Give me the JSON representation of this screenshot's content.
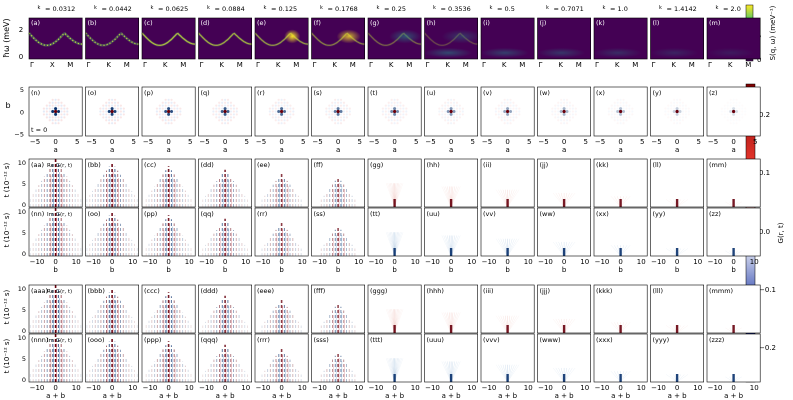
{
  "chart_data": {
    "type": "heatmap",
    "panel_grid_columns": 13,
    "temperature_labels": [
      "= 0.0312",
      "= 0.0442",
      "= 0.0625",
      "= 0.0884",
      "= 0.125",
      "= 0.1768",
      "= 0.25",
      "= 0.3536",
      "= 0.5",
      "= 0.7071",
      "= 1.0",
      "= 1.4142",
      "= 2.0"
    ],
    "temperature_values": [
      0.0312,
      0.0442,
      0.0625,
      0.0884,
      0.125,
      0.1768,
      0.25,
      0.3536,
      0.5,
      0.7071,
      1.0,
      1.4142,
      2.0
    ],
    "temperature_symbol": "k_B T / J",
    "rows": [
      {
        "id": "spectrum",
        "ylabel": "ħω (meV)",
        "ylim": [
          0,
          3
        ],
        "yticks": [
          "0",
          "2"
        ],
        "xticks_first": [
          "Γ",
          "X",
          "M"
        ],
        "xticks": [
          "Γ",
          "K",
          "M"
        ],
        "tags": [
          "(a)",
          "(b)",
          "(c)",
          "(d)",
          "(e)",
          "(f)",
          "(g)",
          "(h)",
          "(i)",
          "(j)",
          "(k)",
          "(l)",
          "(m)"
        ],
        "colorbar": {
          "label": "S(q, ω) (meV⁻¹)",
          "ticks": [
            "0",
            "5"
          ],
          "range": [
            0,
            8
          ]
        }
      },
      {
        "id": "real_space",
        "ylabel": "b",
        "ylim": [
          -5,
          5
        ],
        "yticks": [
          "5",
          "0",
          "−5"
        ],
        "xlabel": "a",
        "xticks": [
          "−5",
          "0",
          "5"
        ],
        "annotation": "t = 0",
        "tags": [
          "(n)",
          "(o)",
          "(p)",
          "(q)",
          "(r)",
          "(s)",
          "(t)",
          "(u)",
          "(v)",
          "(w)",
          "(x)",
          "(y)",
          "(z)"
        ]
      },
      {
        "id": "re_b",
        "ylabel": "t (10⁻¹² s)",
        "yticks": [
          "10",
          "5",
          "0"
        ],
        "inset": "Re G(r, t)",
        "tags": [
          "(aa)",
          "(bb)",
          "(cc)",
          "(dd)",
          "(ee)",
          "(ff)",
          "(gg)",
          "(hh)",
          "(ii)",
          "(jj)",
          "(kk)",
          "(ll)",
          "(mm)"
        ]
      },
      {
        "id": "im_b",
        "ylabel": "t (10⁻¹² s)",
        "yticks": [
          "10",
          "5",
          "0"
        ],
        "inset": "Im G(r, t)",
        "xlabel": "b",
        "xticks": [
          "−10",
          "0",
          "10"
        ],
        "tags": [
          "(nn)",
          "(oo)",
          "(pp)",
          "(qq)",
          "(rr)",
          "(ss)",
          "(tt)",
          "(uu)",
          "(vv)",
          "(ww)",
          "(xx)",
          "(yy)",
          "(zz)"
        ]
      },
      {
        "id": "re_ab",
        "ylabel": "t (10⁻¹² s)",
        "yticks": [
          "10",
          "5",
          "0"
        ],
        "inset": "Re G(r, t)",
        "tags": [
          "(aaa)",
          "(bbb)",
          "(ccc)",
          "(ddd)",
          "(eee)",
          "(fff)",
          "(ggg)",
          "(hhh)",
          "(iii)",
          "(jjj)",
          "(kkk)",
          "(lll)",
          "(mmm)"
        ]
      },
      {
        "id": "im_ab",
        "ylabel": "t (10⁻¹² s)",
        "yticks": [
          "10",
          "5",
          "0"
        ],
        "inset": "Im G(r, t)",
        "xlabel": "a + b",
        "xticks": [
          "−10",
          "0",
          "10"
        ],
        "tags": [
          "(nnn)",
          "(ooo)",
          "(ppp)",
          "(qqq)",
          "(rrr)",
          "(sss)",
          "(ttt)",
          "(uuu)",
          "(vvv)",
          "(www)",
          "(xxx)",
          "(yyy)",
          "(zzz)"
        ]
      }
    ],
    "colorbar_G": {
      "label": "G(r, t)",
      "ticks": [
        "0.2",
        "0.1",
        "0.0",
        "−0.1",
        "−0.2"
      ],
      "range": [
        -0.25,
        0.25
      ]
    },
    "colors": {
      "viridis_low": "#440154",
      "viridis_high": "#fde725",
      "positive": "#67000d",
      "negative": "#08306b"
    }
  }
}
